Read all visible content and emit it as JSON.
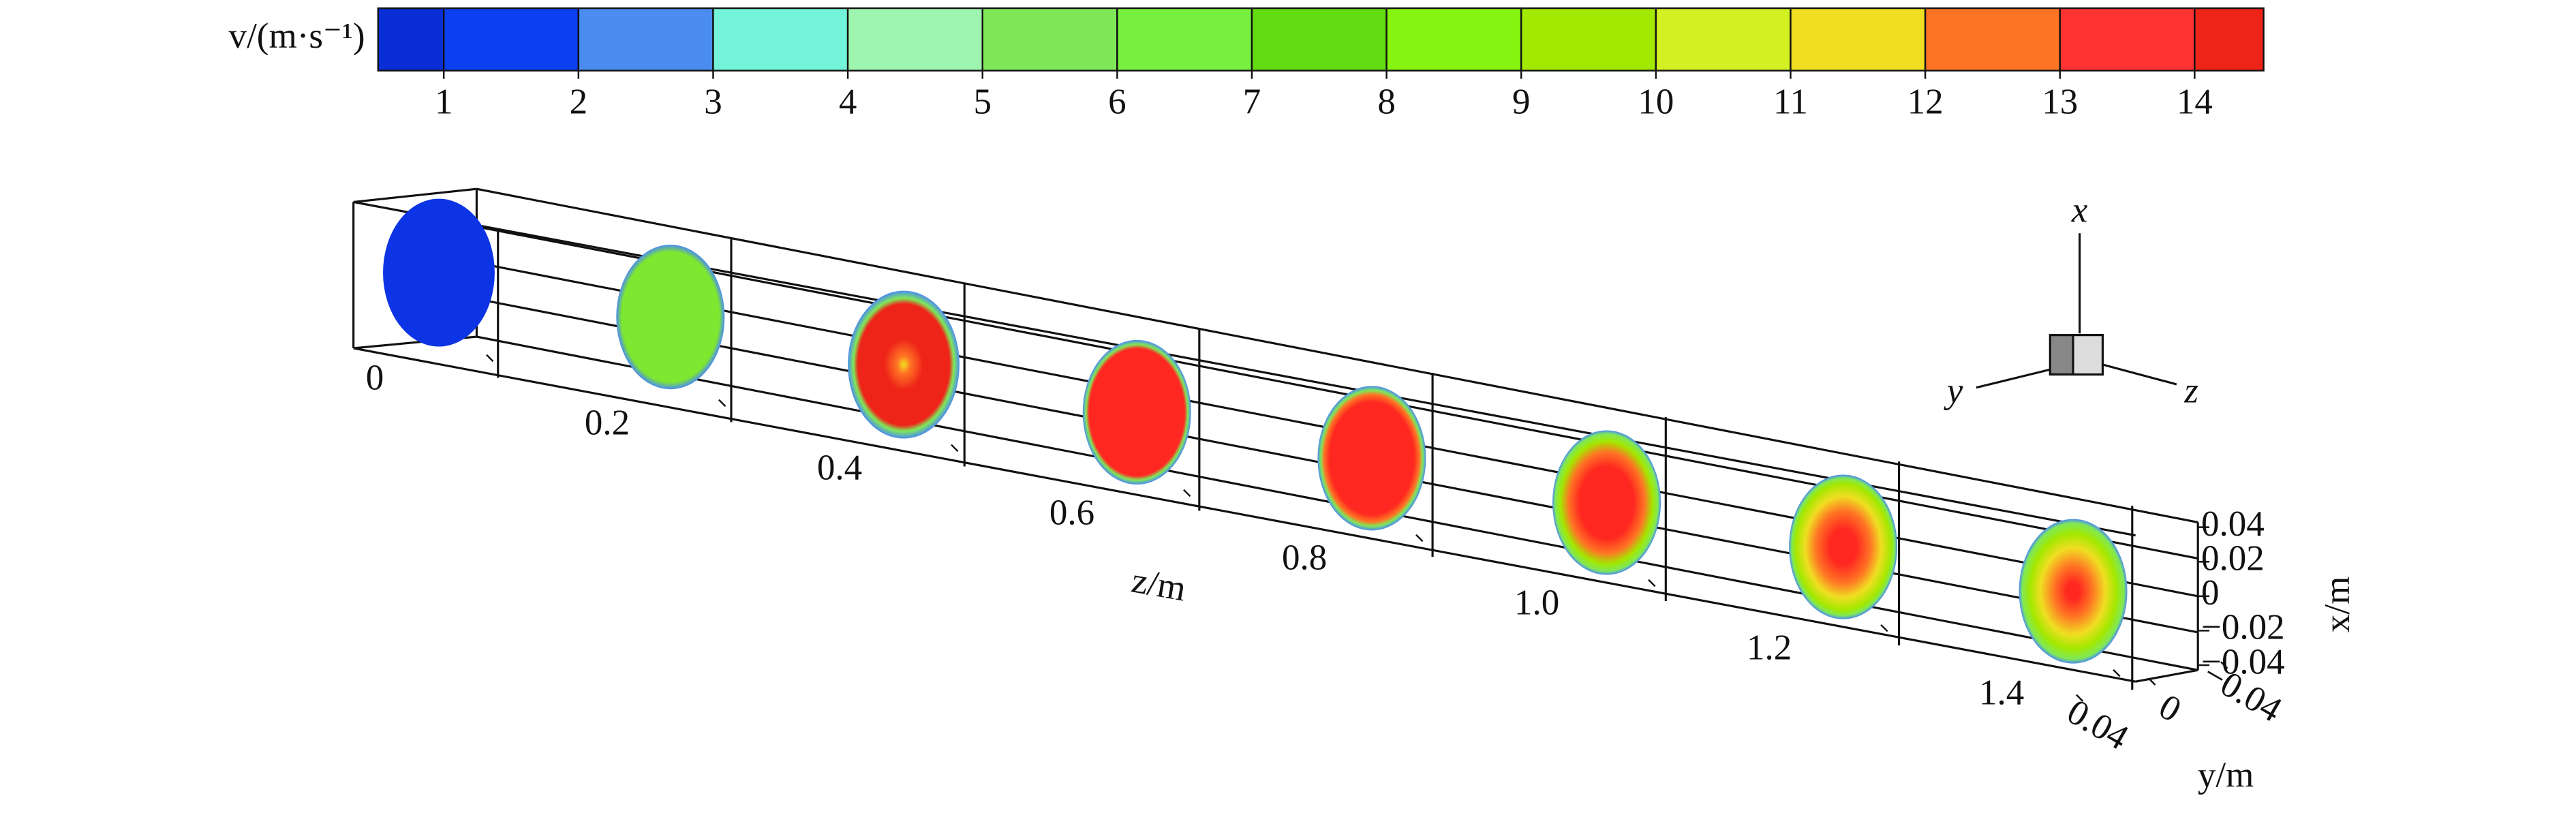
{
  "colorbar": {
    "label": "v/(m·s⁻¹)",
    "ticks": [
      1,
      2,
      3,
      4,
      5,
      6,
      7,
      8,
      9,
      10,
      11,
      12,
      13,
      14
    ],
    "colors": [
      "#0a2ed6",
      "#0c3ef2",
      "#4a8cf0",
      "#74f4d8",
      "#9ef5b0",
      "#80e858",
      "#78f040",
      "#62dc10",
      "#84f410",
      "#a2e800",
      "#d2f022",
      "#f0de22",
      "#ff7424",
      "#ff3232",
      "#ee2418"
    ]
  },
  "axes": {
    "z": {
      "label": "z/m",
      "ticks": [
        0,
        0.2,
        0.4,
        0.6,
        0.8,
        {
          "value": 1,
          "label": "1.0"
        },
        1.2,
        1.4
      ]
    },
    "x": {
      "label": "x/m",
      "ticks": [
        0.04,
        0.02,
        0,
        {
          "value": -0.02,
          "label": "−0.02"
        },
        {
          "value": -0.04,
          "label": "−0.04"
        }
      ]
    },
    "y": {
      "label": "y/m",
      "ticks": [
        {
          "value": -0.04,
          "label": "−0.04"
        },
        0,
        0.04
      ]
    }
  },
  "triad": {
    "x": "x",
    "y": "y",
    "z": "z"
  }
}
